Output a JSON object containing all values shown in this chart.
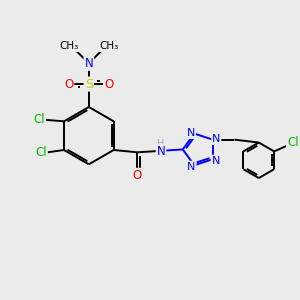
{
  "bg_color": "#ebebeb",
  "bond_color": "#000000",
  "bond_width": 1.4,
  "colors": {
    "C": "#000000",
    "N": "#0000ff",
    "O": "#ff0000",
    "S": "#cccc00",
    "Cl": "#00bb00",
    "H": "#8ab4c8"
  },
  "font_size": 8.5,
  "dbo": 0.07
}
